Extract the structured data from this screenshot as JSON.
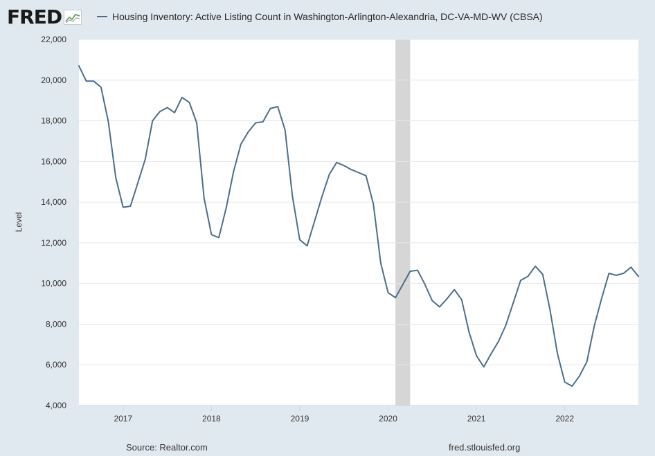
{
  "header": {
    "logo_text": "FRED",
    "legend_label": "Housing Inventory: Active Listing Count in Washington-Arlington-Alexandria, DC-VA-MD-WV (CBSA)"
  },
  "footer": {
    "source": "Source: Realtor.com",
    "url": "fred.stlouisfed.org"
  },
  "colors": {
    "series": "#4b6d8c",
    "recession": "#d6d6d6",
    "background": "#e1e9f0",
    "plot": "#ffffff"
  },
  "chart_data": {
    "type": "line",
    "ylabel": "Level",
    "ylim": [
      4000,
      22000
    ],
    "yticks": [
      "4,000",
      "6,000",
      "8,000",
      "10,000",
      "12,000",
      "14,000",
      "16,000",
      "18,000",
      "20,000",
      "22,000"
    ],
    "ytick_values": [
      4000,
      6000,
      8000,
      10000,
      12000,
      14000,
      16000,
      18000,
      20000,
      22000
    ],
    "xlim": [
      "2016-07",
      "2022-11"
    ],
    "xticks": [
      "2017",
      "2018",
      "2019",
      "2020",
      "2021",
      "2022"
    ],
    "grid": true,
    "recession": {
      "start": "2020-02",
      "end": "2020-04"
    },
    "series": [
      {
        "name": "Housing Inventory: Active Listing Count in Washington-Arlington-Alexandria, DC-VA-MD-WV (CBSA)",
        "x": [
          "2016-07",
          "2016-08",
          "2016-09",
          "2016-10",
          "2016-11",
          "2016-12",
          "2017-01",
          "2017-02",
          "2017-03",
          "2017-04",
          "2017-05",
          "2017-06",
          "2017-07",
          "2017-08",
          "2017-09",
          "2017-10",
          "2017-11",
          "2017-12",
          "2018-01",
          "2018-02",
          "2018-03",
          "2018-04",
          "2018-05",
          "2018-06",
          "2018-07",
          "2018-08",
          "2018-09",
          "2018-10",
          "2018-11",
          "2018-12",
          "2019-01",
          "2019-02",
          "2019-03",
          "2019-04",
          "2019-05",
          "2019-06",
          "2019-07",
          "2019-08",
          "2019-09",
          "2019-10",
          "2019-11",
          "2019-12",
          "2020-01",
          "2020-02",
          "2020-03",
          "2020-04",
          "2020-05",
          "2020-06",
          "2020-07",
          "2020-08",
          "2020-09",
          "2020-10",
          "2020-11",
          "2020-12",
          "2021-01",
          "2021-02",
          "2021-03",
          "2021-04",
          "2021-05",
          "2021-06",
          "2021-07",
          "2021-08",
          "2021-09",
          "2021-10",
          "2021-11",
          "2021-12",
          "2022-01",
          "2022-02",
          "2022-03",
          "2022-04",
          "2022-05",
          "2022-06",
          "2022-07",
          "2022-08",
          "2022-09",
          "2022-10",
          "2022-11"
        ],
        "values": [
          20700,
          19950,
          19950,
          19650,
          17950,
          15200,
          13750,
          13800,
          14950,
          16100,
          18000,
          18450,
          18650,
          18400,
          19150,
          18900,
          17900,
          14200,
          12400,
          12250,
          13700,
          15500,
          16850,
          17450,
          17900,
          17950,
          18600,
          18700,
          17550,
          14300,
          12150,
          11850,
          13050,
          14250,
          15350,
          15950,
          15800,
          15600,
          15450,
          15300,
          13900,
          11000,
          9550,
          9300,
          9950,
          10600,
          10650,
          9950,
          9150,
          8850,
          9250,
          9700,
          9200,
          7600,
          6450,
          5900,
          6550,
          7150,
          7950,
          9050,
          10150,
          10350,
          10850,
          10450,
          8700,
          6550,
          5150,
          4950,
          5450,
          6150,
          7900,
          9250,
          10500,
          10400,
          10500,
          10800,
          10350
        ]
      }
    ]
  }
}
